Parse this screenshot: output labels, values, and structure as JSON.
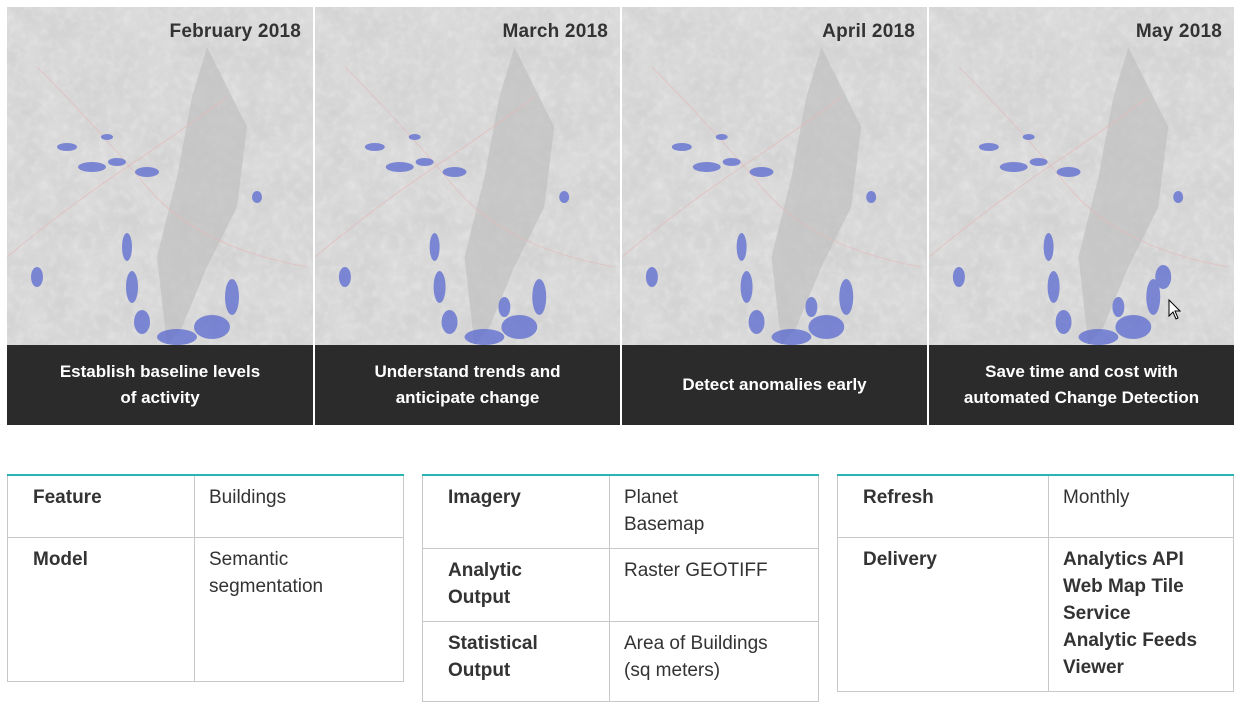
{
  "panels": [
    {
      "date": "February 2018",
      "caption_line1": "Establish baseline levels",
      "caption_line2": "of activity"
    },
    {
      "date": "March 2018",
      "caption_line1": "Understand trends and",
      "caption_line2": "anticipate change"
    },
    {
      "date": "April 2018",
      "caption_line1": "Detect anomalies early",
      "caption_line2": ""
    },
    {
      "date": "May 2018",
      "caption_line1": "Save time and cost with",
      "caption_line2": "automated Change Detection"
    }
  ],
  "table1": {
    "rows": [
      {
        "key": "Feature",
        "value": "Buildings"
      },
      {
        "key": "Model",
        "value_lines": [
          "Semantic",
          "segmentation"
        ]
      }
    ]
  },
  "table2": {
    "rows": [
      {
        "key": "Imagery",
        "value_lines": [
          "Planet",
          "Basemap"
        ]
      },
      {
        "key_lines": [
          "Analytic",
          "Output"
        ],
        "value": "Raster GEOTIFF"
      },
      {
        "key_lines": [
          "Statistical",
          "Output"
        ],
        "value_lines": [
          "Area of Buildings",
          "(sq meters)"
        ]
      }
    ]
  },
  "table3": {
    "rows": [
      {
        "key": "Refresh",
        "value": "Monthly"
      },
      {
        "key": "Delivery",
        "value_lines": [
          "Analytics API",
          "Web Map Tile",
          "Service",
          "Analytic Feeds",
          "Viewer"
        ]
      }
    ]
  },
  "colors": {
    "accent_teal": "#2ab3b3",
    "caption_bg": "#2b2b2b",
    "building_blue": "#5a6ad0",
    "terrain": "#dcdcdc"
  }
}
